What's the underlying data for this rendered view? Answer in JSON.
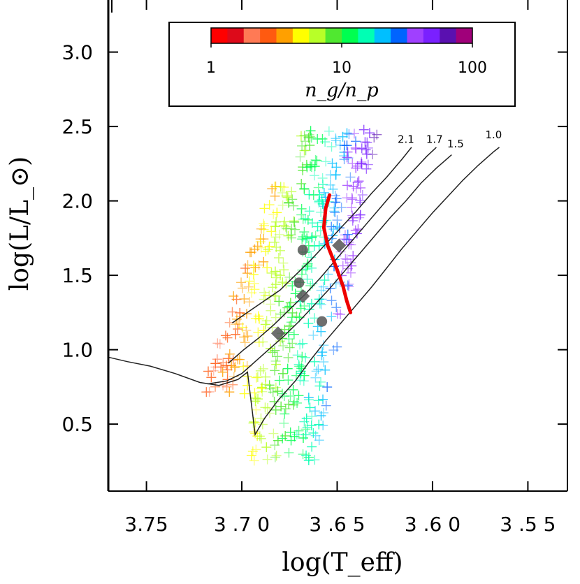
{
  "chart_data": {
    "type": "scatter",
    "title": "",
    "xlabel": "log(T_eff)",
    "ylabel": "log(L/L_⊙)",
    "xlim": [
      3.77,
      3.53
    ],
    "ylim": [
      0.05,
      3.35
    ],
    "x_ticks": [
      {
        "value": 3.75,
        "label": "3.75"
      },
      {
        "value": 3.7,
        "label": "3 .7 0"
      },
      {
        "value": 3.65,
        "label": "3 .6 5"
      },
      {
        "value": 3.6,
        "label": "3 .6 0"
      },
      {
        "value": 3.55,
        "label": "3 .5 5"
      }
    ],
    "y_ticks": [
      {
        "value": 0.5,
        "label": "0.5"
      },
      {
        "value": 1.0,
        "label": "1.0"
      },
      {
        "value": 1.5,
        "label": "1.5"
      },
      {
        "value": 2.0,
        "label": "2.0"
      },
      {
        "value": 2.5,
        "label": "2.5"
      },
      {
        "value": 3.0,
        "label": "3.0"
      }
    ],
    "colorbar": {
      "title": "n_g/n_p",
      "min": 1,
      "max": 100,
      "scale": "log",
      "tick_labels": [
        "1",
        "10",
        "100"
      ],
      "colors": [
        "#ff0000",
        "#dd0a1a",
        "#ff7a55",
        "#ff5a10",
        "#ffa000",
        "#ffff00",
        "#b8ff28",
        "#50e830",
        "#00ff50",
        "#00ffb4",
        "#00bfff",
        "#0064ff",
        "#a040ff",
        "#7a20ff",
        "#5a10b0",
        "#a0007a"
      ]
    },
    "tracks": [
      {
        "label": "2.1",
        "points": [
          [
            3.705,
            1.18
          ],
          [
            3.696,
            1.26
          ],
          [
            3.688,
            1.33
          ],
          [
            3.68,
            1.4
          ],
          [
            3.672,
            1.5
          ],
          [
            3.664,
            1.6
          ],
          [
            3.656,
            1.71
          ],
          [
            3.648,
            1.82
          ],
          [
            3.64,
            1.93
          ],
          [
            3.632,
            2.05
          ],
          [
            3.624,
            2.16
          ],
          [
            3.616,
            2.28
          ],
          [
            3.611,
            2.36
          ]
        ],
        "label_at": [
          3.611,
          2.39
        ]
      },
      {
        "label": "1.7",
        "points": [
          [
            3.707,
            0.91
          ],
          [
            3.699,
            1.0
          ],
          [
            3.691,
            1.08
          ],
          [
            3.683,
            1.17
          ],
          [
            3.675,
            1.27
          ],
          [
            3.667,
            1.37
          ],
          [
            3.659,
            1.48
          ],
          [
            3.651,
            1.6
          ],
          [
            3.643,
            1.72
          ],
          [
            3.635,
            1.84
          ],
          [
            3.627,
            1.96
          ],
          [
            3.619,
            2.08
          ],
          [
            3.611,
            2.19
          ],
          [
            3.603,
            2.3
          ],
          [
            3.598,
            2.36
          ]
        ],
        "label_at": [
          3.596,
          2.39
        ]
      },
      {
        "label": "1.5",
        "points": [
          [
            3.718,
            0.77
          ],
          [
            3.708,
            0.79
          ],
          [
            3.7,
            0.84
          ],
          [
            3.693,
            0.92
          ],
          [
            3.686,
            1.0
          ],
          [
            3.678,
            1.09
          ],
          [
            3.67,
            1.19
          ],
          [
            3.662,
            1.3
          ],
          [
            3.654,
            1.41
          ],
          [
            3.646,
            1.53
          ],
          [
            3.638,
            1.65
          ],
          [
            3.63,
            1.77
          ],
          [
            3.622,
            1.89
          ],
          [
            3.614,
            2.0
          ],
          [
            3.606,
            2.12
          ],
          [
            3.598,
            2.22
          ],
          [
            3.59,
            2.31
          ]
        ],
        "label_at": [
          3.585,
          2.36
        ]
      },
      {
        "label": "1.0",
        "points": [
          [
            3.77,
            0.95
          ],
          [
            3.76,
            0.92
          ],
          [
            3.748,
            0.89
          ],
          [
            3.735,
            0.84
          ],
          [
            3.722,
            0.78
          ],
          [
            3.712,
            0.76
          ],
          [
            3.702,
            0.8
          ],
          [
            3.697,
            0.85
          ],
          [
            3.693,
            0.43
          ],
          [
            3.688,
            0.54
          ],
          [
            3.681,
            0.66
          ],
          [
            3.672,
            0.79
          ],
          [
            3.664,
            0.93
          ],
          [
            3.656,
            1.06
          ],
          [
            3.648,
            1.18
          ],
          [
            3.64,
            1.3
          ],
          [
            3.632,
            1.42
          ],
          [
            3.624,
            1.55
          ],
          [
            3.616,
            1.68
          ],
          [
            3.608,
            1.8
          ],
          [
            3.6,
            1.92
          ],
          [
            3.592,
            2.03
          ],
          [
            3.584,
            2.14
          ],
          [
            3.576,
            2.24
          ],
          [
            3.568,
            2.33
          ],
          [
            3.565,
            2.36
          ]
        ],
        "label_at": [
          3.565,
          2.42
        ]
      }
    ],
    "red_curve": [
      [
        3.654,
        2.04
      ],
      [
        3.656,
        1.95
      ],
      [
        3.657,
        1.82
      ],
      [
        3.655,
        1.7
      ],
      [
        3.651,
        1.57
      ],
      [
        3.647,
        1.43
      ],
      [
        3.645,
        1.33
      ],
      [
        3.643,
        1.25
      ]
    ],
    "special_points": [
      {
        "shape": "circle",
        "x": 3.668,
        "y": 1.67
      },
      {
        "shape": "circle",
        "x": 3.67,
        "y": 1.45
      },
      {
        "shape": "circle",
        "x": 3.658,
        "y": 1.19
      },
      {
        "shape": "diamond",
        "x": 3.649,
        "y": 1.7
      },
      {
        "shape": "diamond",
        "x": 3.668,
        "y": 1.36
      },
      {
        "shape": "diamond",
        "x": 3.681,
        "y": 1.11
      }
    ],
    "cloud": {
      "region": {
        "x_left": 3.713,
        "x_right": 3.629,
        "y_bottom": 0.25,
        "y_top": 2.48
      },
      "count": 540,
      "description": "grid of '+' markers colored by n_g/n_p"
    }
  }
}
